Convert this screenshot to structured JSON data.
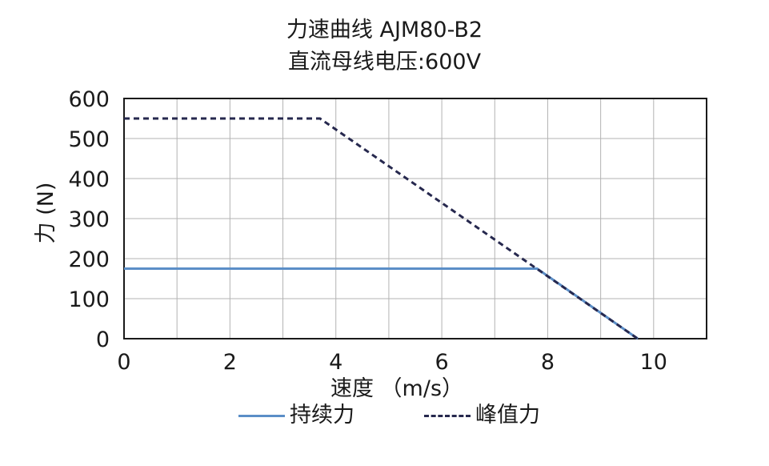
{
  "chart_data": {
    "type": "line",
    "title": "力速曲线 AJM80-B2",
    "subtitle": "直流母线电压:600V",
    "xlabel": "速度 （m/s）",
    "ylabel": "力 (N)",
    "xlim": [
      0,
      11
    ],
    "ylim": [
      0,
      600
    ],
    "xticks": [
      0,
      2,
      4,
      6,
      8,
      10
    ],
    "yticks": [
      0,
      100,
      200,
      300,
      400,
      500,
      600
    ],
    "grid": true,
    "legend_position": "bottom",
    "series": [
      {
        "name": "持续力",
        "color": "#5b8ec7",
        "dash": "solid",
        "x": [
          0,
          7.8,
          9.7
        ],
        "y": [
          175,
          175,
          0
        ]
      },
      {
        "name": "峰值力",
        "color": "#26284e",
        "dash": "dashed",
        "x": [
          0,
          3.7,
          9.7
        ],
        "y": [
          550,
          550,
          0
        ]
      }
    ]
  }
}
